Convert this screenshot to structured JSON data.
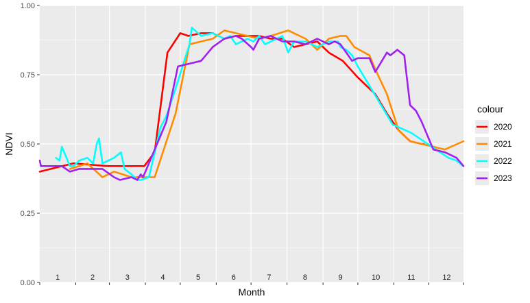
{
  "chart_data": {
    "type": "line",
    "xlabel": "Month",
    "ylabel": "NDVI",
    "ylim": [
      0,
      1
    ],
    "xlim": [
      1,
      366
    ],
    "y_ticks": [
      "0.00",
      "0.25",
      "0.50",
      "0.75",
      "1.00"
    ],
    "month_labels": [
      "1",
      "2",
      "3",
      "4",
      "5",
      "6",
      "7",
      "8",
      "9",
      "10",
      "11",
      "12"
    ],
    "legend": {
      "title": "colour",
      "position": "right"
    },
    "grid": true,
    "colors": {
      "panel": "#ebebeb",
      "grid": "#ffffff"
    },
    "series": [
      {
        "name": "2020",
        "color": "#ff0000",
        "x": [
          1,
          30,
          60,
          90,
          91,
          100,
          111,
          122,
          129,
          140,
          150,
          160,
          170,
          180,
          190,
          200,
          210,
          220,
          230,
          240,
          250,
          262,
          275,
          290,
          300,
          310,
          320,
          330,
          332
        ],
        "y": [
          0.4,
          0.43,
          0.42,
          0.42,
          0.42,
          0.47,
          0.83,
          0.9,
          0.89,
          0.9,
          0.9,
          0.88,
          0.89,
          0.89,
          0.89,
          0.88,
          0.88,
          0.85,
          0.86,
          0.87,
          0.83,
          0.8,
          0.74,
          0.68,
          0.61,
          0.55,
          0.51,
          0.5,
          0.5
        ]
      },
      {
        "name": "2021",
        "color": "#ff8c00",
        "x": [
          27,
          35,
          42,
          55,
          65,
          80,
          90,
          100,
          118,
          130,
          140,
          150,
          160,
          170,
          180,
          190,
          200,
          215,
          230,
          240,
          245,
          250,
          260,
          265,
          272,
          285,
          290,
          300,
          310,
          320,
          330,
          350,
          366
        ],
        "y": [
          0.41,
          0.42,
          0.43,
          0.38,
          0.4,
          0.38,
          0.38,
          0.38,
          0.61,
          0.86,
          0.87,
          0.88,
          0.91,
          0.9,
          0.89,
          0.88,
          0.89,
          0.91,
          0.88,
          0.84,
          0.86,
          0.88,
          0.89,
          0.89,
          0.85,
          0.82,
          0.77,
          0.68,
          0.55,
          0.51,
          0.5,
          0.48,
          0.51
        ]
      },
      {
        "name": "2022",
        "color": "#00ffff",
        "x": [
          15,
          18,
          20,
          22,
          27,
          30,
          35,
          42,
          47,
          50,
          52,
          55,
          65,
          71,
          74,
          80,
          85,
          88,
          95,
          105,
          110,
          114,
          118,
          130,
          132,
          140,
          150,
          160,
          165,
          170,
          180,
          185,
          190,
          195,
          210,
          215,
          220,
          230,
          240,
          250,
          258,
          260,
          265,
          270,
          275,
          285,
          305,
          321,
          353,
          360,
          366
        ],
        "y": [
          0.45,
          0.44,
          0.49,
          0.47,
          0.42,
          0.42,
          0.44,
          0.45,
          0.43,
          0.5,
          0.52,
          0.43,
          0.45,
          0.47,
          0.41,
          0.39,
          0.37,
          0.37,
          0.38,
          0.56,
          0.6,
          0.65,
          0.7,
          0.86,
          0.92,
          0.89,
          0.9,
          0.88,
          0.89,
          0.86,
          0.88,
          0.87,
          0.89,
          0.86,
          0.89,
          0.83,
          0.87,
          0.87,
          0.85,
          0.87,
          0.87,
          0.85,
          0.84,
          0.82,
          0.78,
          0.71,
          0.57,
          0.54,
          0.45,
          0.44,
          0.42
        ]
      },
      {
        "name": "2023",
        "color": "#a020f0",
        "x": [
          1,
          2,
          20,
          27,
          35,
          50,
          55,
          65,
          70,
          80,
          85,
          88,
          90,
          110,
          120,
          140,
          150,
          160,
          170,
          175,
          183,
          185,
          190,
          200,
          210,
          220,
          230,
          240,
          250,
          255,
          260,
          270,
          275,
          285,
          290,
          300,
          303,
          309,
          315,
          320,
          325,
          330,
          340,
          350,
          360,
          366
        ],
        "y": [
          0.44,
          0.42,
          0.42,
          0.4,
          0.41,
          0.41,
          0.41,
          0.38,
          0.37,
          0.38,
          0.37,
          0.39,
          0.38,
          0.58,
          0.78,
          0.8,
          0.85,
          0.88,
          0.89,
          0.88,
          0.85,
          0.84,
          0.88,
          0.89,
          0.87,
          0.87,
          0.86,
          0.88,
          0.86,
          0.87,
          0.86,
          0.8,
          0.81,
          0.81,
          0.76,
          0.83,
          0.82,
          0.84,
          0.82,
          0.64,
          0.62,
          0.58,
          0.48,
          0.47,
          0.45,
          0.42
        ]
      }
    ]
  }
}
